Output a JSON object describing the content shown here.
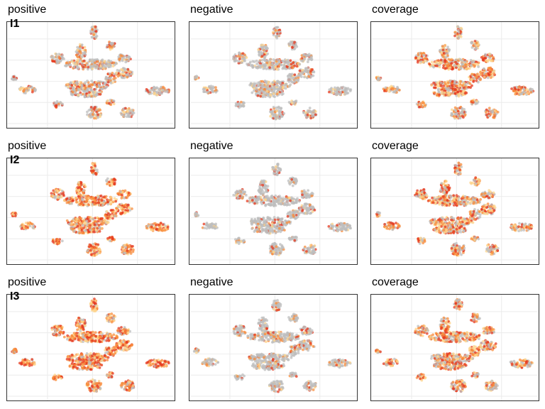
{
  "figure": {
    "colors": {
      "background_point": "#bdbdbd",
      "low": "#fdd38a",
      "mid": "#f88c3c",
      "high": "#e63a1f",
      "grid": "#ebebeb",
      "frame": "#333333"
    },
    "rows": [
      {
        "label": "I1",
        "panels": [
          {
            "title": "positive",
            "intensity": 0.45
          },
          {
            "title": "negative",
            "intensity": 0.3
          },
          {
            "title": "coverage",
            "intensity": 0.7
          }
        ]
      },
      {
        "label": "I2",
        "panels": [
          {
            "title": "positive",
            "intensity": 0.85
          },
          {
            "title": "negative",
            "intensity": 0.18
          },
          {
            "title": "coverage",
            "intensity": 0.7
          }
        ]
      },
      {
        "label": "I3",
        "panels": [
          {
            "title": "positive",
            "intensity": 0.85
          },
          {
            "title": "negative",
            "intensity": 0.28
          },
          {
            "title": "coverage",
            "intensity": 0.72
          }
        ]
      }
    ]
  },
  "chart_data": {
    "type": "scatter",
    "grid": true,
    "legend": "none",
    "clusters": [
      {
        "cx": 0.5,
        "cy": 0.4,
        "rx": 0.16,
        "ry": 0.05
      },
      {
        "cx": 0.48,
        "cy": 0.6,
        "rx": 0.13,
        "ry": 0.045
      },
      {
        "cx": 0.47,
        "cy": 0.67,
        "rx": 0.1,
        "ry": 0.04
      },
      {
        "cx": 0.52,
        "cy": 0.86,
        "rx": 0.045,
        "ry": 0.06
      },
      {
        "cx": 0.52,
        "cy": 0.1,
        "rx": 0.025,
        "ry": 0.06
      },
      {
        "cx": 0.3,
        "cy": 0.34,
        "rx": 0.04,
        "ry": 0.05
      },
      {
        "cx": 0.44,
        "cy": 0.28,
        "rx": 0.03,
        "ry": 0.07
      },
      {
        "cx": 0.62,
        "cy": 0.22,
        "rx": 0.03,
        "ry": 0.04
      },
      {
        "cx": 0.7,
        "cy": 0.34,
        "rx": 0.04,
        "ry": 0.04
      },
      {
        "cx": 0.7,
        "cy": 0.48,
        "rx": 0.05,
        "ry": 0.05
      },
      {
        "cx": 0.62,
        "cy": 0.53,
        "rx": 0.035,
        "ry": 0.05
      },
      {
        "cx": 0.9,
        "cy": 0.65,
        "rx": 0.07,
        "ry": 0.04
      },
      {
        "cx": 0.12,
        "cy": 0.64,
        "rx": 0.05,
        "ry": 0.035
      },
      {
        "cx": 0.04,
        "cy": 0.53,
        "rx": 0.015,
        "ry": 0.02
      },
      {
        "cx": 0.3,
        "cy": 0.78,
        "rx": 0.03,
        "ry": 0.03
      },
      {
        "cx": 0.62,
        "cy": 0.76,
        "rx": 0.025,
        "ry": 0.025
      },
      {
        "cx": 0.72,
        "cy": 0.86,
        "rx": 0.04,
        "ry": 0.05
      }
    ]
  }
}
